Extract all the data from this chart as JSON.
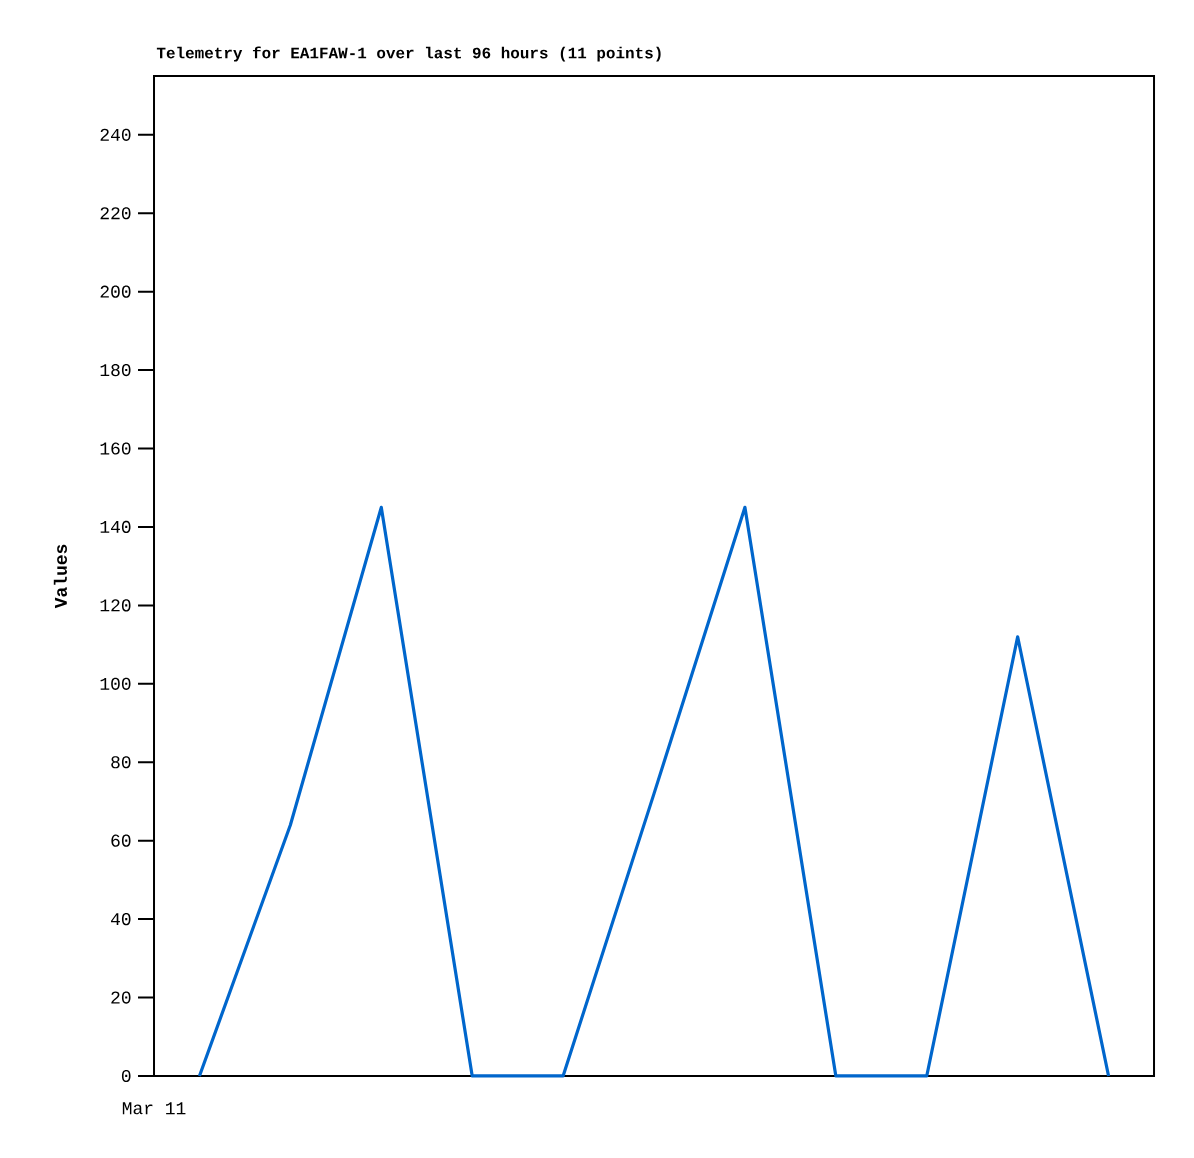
{
  "chart_data": {
    "type": "line",
    "title": "Telemetry for EA1FAW-1 over last 96 hours (11 points)",
    "ylabel": "Values",
    "categories": [
      null,
      null,
      null,
      null,
      null,
      null,
      null,
      null,
      null,
      null,
      null
    ],
    "series": [
      {
        "color": "#0066cc",
        "values": [
          0,
          64,
          145,
          0,
          0,
          72,
          145,
          0,
          0,
          112,
          0
        ]
      }
    ],
    "annotations": [
      "Mar 11"
    ],
    "ylim": [
      0,
      255
    ],
    "yticks": [
      {
        "value": 0,
        "label": "0"
      },
      {
        "value": 20,
        "label": "20"
      },
      {
        "value": 40,
        "label": "40"
      },
      {
        "value": 60,
        "label": "60"
      },
      {
        "value": 80,
        "label": "80"
      },
      {
        "value": 100,
        "label": "100"
      },
      {
        "value": 120,
        "label": "120"
      },
      {
        "value": 140,
        "label": "140"
      },
      {
        "value": 160,
        "label": "160"
      },
      {
        "value": 180,
        "label": "180"
      },
      {
        "value": 200,
        "label": "200"
      },
      {
        "value": 220,
        "label": "220"
      },
      {
        "value": 240,
        "label": "240"
      }
    ],
    "marker": "none",
    "line_style": "solid"
  }
}
